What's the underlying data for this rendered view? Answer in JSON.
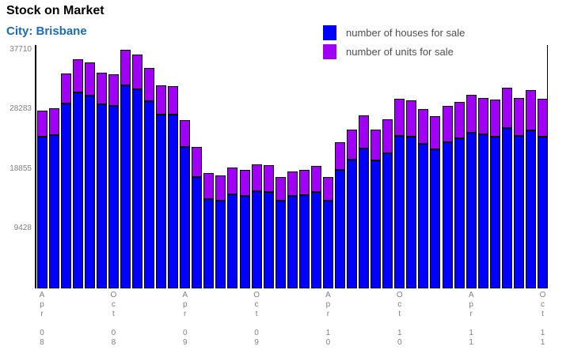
{
  "header": {
    "title": "Stock on Market",
    "subtitle": "City: Brisbane"
  },
  "legend": {
    "items": [
      {
        "label": "number of houses for sale",
        "color": "#0000ff"
      },
      {
        "label": "number of units for sale",
        "color": "#a000f5"
      }
    ]
  },
  "chart_data": {
    "type": "bar",
    "stacked": true,
    "title": "Stock on Market",
    "subtitle": "City: Brisbane",
    "x": [
      "Apr 08",
      "May 08",
      "Jun 08",
      "Jul 08",
      "Aug 08",
      "Sep 08",
      "Oct 08",
      "Nov 08",
      "Dec 08",
      "Jan 09",
      "Feb 09",
      "Mar 09",
      "Apr 09",
      "May 09",
      "Jun 09",
      "Jul 09",
      "Aug 09",
      "Sep 09",
      "Oct 09",
      "Nov 09",
      "Dec 09",
      "Jan 10",
      "Feb 10",
      "Mar 10",
      "Apr 10",
      "May 10",
      "Jun 10",
      "Jul 10",
      "Aug 10",
      "Sep 10",
      "Oct 10",
      "Nov 10",
      "Dec 10",
      "Jan 11",
      "Feb 11",
      "Mar 11",
      "Apr 11",
      "May 11",
      "Jun 11",
      "Jul 11",
      "Aug 11",
      "Sep 11",
      "Oct 11"
    ],
    "x_ticks_shown": [
      "Apr 08",
      "Oct 08",
      "Apr 09",
      "Oct 09",
      "Apr 10",
      "Oct 10",
      "Apr 11",
      "Oct 11"
    ],
    "series": [
      {
        "name": "number of houses for sale",
        "color": "#0000ff",
        "values": [
          24000,
          24200,
          29200,
          31000,
          30400,
          29100,
          28800,
          32100,
          31500,
          29600,
          27400,
          27500,
          22300,
          17600,
          14100,
          13800,
          14900,
          14600,
          15400,
          15200,
          13900,
          14600,
          14700,
          15200,
          13900,
          18700,
          20300,
          22100,
          20200,
          21300,
          24100,
          23900,
          22800,
          22000,
          23100,
          23700,
          24600,
          24300,
          24000,
          25300,
          24100,
          24900,
          24000
        ]
      },
      {
        "name": "number of units for sale",
        "color": "#a000f5",
        "values": [
          4100,
          4200,
          4800,
          5300,
          5200,
          5000,
          5000,
          5610,
          5500,
          5200,
          4600,
          4500,
          4300,
          4700,
          4100,
          4000,
          4300,
          4100,
          4300,
          4200,
          3800,
          3900,
          4000,
          4100,
          3700,
          4400,
          4800,
          5200,
          4900,
          5400,
          5900,
          5700,
          5500,
          5300,
          5800,
          5700,
          6000,
          5800,
          5900,
          6400,
          6000,
          6400,
          6000
        ]
      }
    ],
    "y_ticks": [
      9428,
      18855,
      28283,
      37710
    ],
    "ylim": [
      0,
      37710
    ],
    "grid": false,
    "legend_position": "top-right"
  }
}
